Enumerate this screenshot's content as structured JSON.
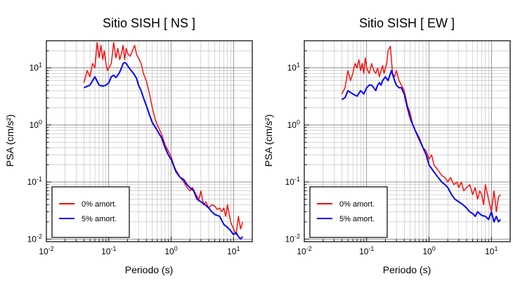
{
  "chart_data": [
    {
      "type": "line",
      "title": "Sitio SISH [ NS ]",
      "xlabel": "Periodo (s)",
      "ylabel": "PSA (cm/s²)",
      "xscale": "log",
      "yscale": "log",
      "xlim": [
        0.01,
        20
      ],
      "ylim": [
        0.009,
        30
      ],
      "xticks": [
        {
          "value": 0.01,
          "base": "10",
          "exp": "-2"
        },
        {
          "value": 0.1,
          "base": "10",
          "exp": "-1"
        },
        {
          "value": 1,
          "base": "10",
          "exp": "0"
        },
        {
          "value": 10,
          "base": "10",
          "exp": "1"
        }
      ],
      "yticks": [
        {
          "value": 0.01,
          "base": "10",
          "exp": "-2"
        },
        {
          "value": 0.1,
          "base": "10",
          "exp": "-1"
        },
        {
          "value": 1,
          "base": "10",
          "exp": "0"
        },
        {
          "value": 10,
          "base": "10",
          "exp": "1"
        }
      ],
      "grid": true,
      "legend_position": "bottom-left",
      "series": [
        {
          "name": "0% amort.",
          "color": "#ff0000",
          "x": [
            0.04,
            0.045,
            0.05,
            0.055,
            0.06,
            0.065,
            0.07,
            0.075,
            0.08,
            0.085,
            0.09,
            0.095,
            0.1,
            0.11,
            0.12,
            0.13,
            0.14,
            0.15,
            0.16,
            0.17,
            0.18,
            0.19,
            0.2,
            0.22,
            0.24,
            0.26,
            0.28,
            0.3,
            0.33,
            0.36,
            0.4,
            0.45,
            0.5,
            0.55,
            0.6,
            0.7,
            0.8,
            0.9,
            1.0,
            1.1,
            1.2,
            1.3,
            1.4,
            1.6,
            1.8,
            2.0,
            2.2,
            2.5,
            2.8,
            3.0,
            3.3,
            3.6,
            4.0,
            4.5,
            5.0,
            5.5,
            6.0,
            6.5,
            7.0,
            7.5,
            8.0,
            9.0,
            10,
            11,
            12,
            13,
            14
          ],
          "values": [
            5.5,
            9,
            7,
            12,
            10,
            28,
            15,
            25,
            14,
            20,
            12,
            9,
            10,
            12,
            28,
            15,
            22,
            14,
            18,
            25,
            14,
            22,
            18,
            16,
            20,
            25,
            17,
            15,
            12,
            8,
            6,
            3.5,
            2.0,
            1.3,
            1.0,
            0.7,
            0.45,
            0.35,
            0.28,
            0.2,
            0.16,
            0.14,
            0.12,
            0.1,
            0.08,
            0.07,
            0.08,
            0.06,
            0.05,
            0.07,
            0.04,
            0.045,
            0.035,
            0.04,
            0.038,
            0.033,
            0.035,
            0.03,
            0.035,
            0.025,
            0.04,
            0.02,
            0.015,
            0.012,
            0.025,
            0.015,
            0.02
          ]
        },
        {
          "name": "5% amort.",
          "color": "#0000ff",
          "x": [
            0.04,
            0.05,
            0.06,
            0.07,
            0.08,
            0.09,
            0.1,
            0.11,
            0.12,
            0.13,
            0.14,
            0.15,
            0.16,
            0.17,
            0.18,
            0.19,
            0.2,
            0.22,
            0.25,
            0.28,
            0.3,
            0.33,
            0.36,
            0.4,
            0.45,
            0.5,
            0.6,
            0.7,
            0.8,
            0.9,
            1.0,
            1.2,
            1.4,
            1.6,
            1.8,
            2.0,
            2.3,
            2.6,
            3.0,
            3.5,
            4.0,
            4.5,
            5.0,
            6.0,
            7.0,
            8.0,
            9.0,
            10,
            11,
            12,
            13,
            14
          ],
          "values": [
            4.5,
            5,
            7,
            5,
            4.8,
            5,
            5.5,
            7,
            7.5,
            6.8,
            7.5,
            8.5,
            10,
            12,
            12.5,
            12,
            11,
            9.5,
            8,
            6.5,
            5,
            4,
            3,
            2.2,
            1.5,
            1.1,
            0.8,
            0.6,
            0.4,
            0.3,
            0.25,
            0.15,
            0.12,
            0.11,
            0.09,
            0.08,
            0.07,
            0.05,
            0.045,
            0.04,
            0.035,
            0.03,
            0.027,
            0.025,
            0.018,
            0.016,
            0.014,
            0.012,
            0.013,
            0.011,
            0.01,
            0.011
          ]
        }
      ]
    },
    {
      "type": "line",
      "title": "Sitio SISH [ EW ]",
      "xlabel": "Periodo (s)",
      "ylabel": "PSA (cm/s²)",
      "xscale": "log",
      "yscale": "log",
      "xlim": [
        0.01,
        20
      ],
      "ylim": [
        0.009,
        30
      ],
      "xticks": [
        {
          "value": 0.01,
          "base": "10",
          "exp": "-2"
        },
        {
          "value": 0.1,
          "base": "10",
          "exp": "-1"
        },
        {
          "value": 1,
          "base": "10",
          "exp": "0"
        },
        {
          "value": 10,
          "base": "10",
          "exp": "1"
        }
      ],
      "yticks": [
        {
          "value": 0.01,
          "base": "10",
          "exp": "-2"
        },
        {
          "value": 0.1,
          "base": "10",
          "exp": "-1"
        },
        {
          "value": 1,
          "base": "10",
          "exp": "0"
        },
        {
          "value": 10,
          "base": "10",
          "exp": "1"
        }
      ],
      "grid": true,
      "legend_position": "bottom-left",
      "series": [
        {
          "name": "0% amort.",
          "color": "#ff0000",
          "x": [
            0.04,
            0.045,
            0.05,
            0.055,
            0.06,
            0.065,
            0.07,
            0.075,
            0.08,
            0.085,
            0.09,
            0.095,
            0.1,
            0.11,
            0.12,
            0.13,
            0.14,
            0.15,
            0.16,
            0.17,
            0.18,
            0.19,
            0.2,
            0.21,
            0.22,
            0.24,
            0.26,
            0.28,
            0.3,
            0.33,
            0.36,
            0.4,
            0.45,
            0.5,
            0.55,
            0.6,
            0.7,
            0.8,
            0.9,
            1.0,
            1.1,
            1.2,
            1.4,
            1.6,
            1.8,
            2.0,
            2.2,
            2.5,
            2.8,
            3.0,
            3.3,
            3.6,
            4.0,
            4.5,
            5.0,
            5.5,
            6.0,
            6.5,
            7.0,
            7.5,
            8.0,
            9.0,
            10,
            11,
            12,
            13,
            14
          ],
          "values": [
            3.5,
            4.5,
            9,
            6,
            8,
            12,
            10,
            14,
            9,
            12,
            8,
            15,
            10,
            8,
            12,
            9,
            8,
            10,
            7,
            9,
            11,
            8,
            10,
            12,
            20,
            24,
            8,
            7,
            9,
            6,
            5,
            4,
            2.2,
            1.6,
            1.0,
            0.8,
            0.6,
            0.4,
            0.35,
            0.25,
            0.3,
            0.2,
            0.16,
            0.13,
            0.12,
            0.1,
            0.12,
            0.09,
            0.1,
            0.08,
            0.1,
            0.07,
            0.08,
            0.09,
            0.06,
            0.08,
            0.05,
            0.07,
            0.06,
            0.04,
            0.09,
            0.05,
            0.03,
            0.07,
            0.03,
            0.055,
            0.06
          ]
        },
        {
          "name": "5% amort.",
          "color": "#0000ff",
          "x": [
            0.04,
            0.045,
            0.05,
            0.06,
            0.07,
            0.08,
            0.09,
            0.1,
            0.11,
            0.12,
            0.13,
            0.14,
            0.15,
            0.16,
            0.17,
            0.18,
            0.2,
            0.22,
            0.25,
            0.28,
            0.3,
            0.33,
            0.36,
            0.4,
            0.45,
            0.5,
            0.6,
            0.7,
            0.8,
            0.9,
            1.0,
            1.2,
            1.4,
            1.6,
            1.8,
            2.0,
            2.3,
            2.6,
            3.0,
            3.5,
            4.0,
            4.5,
            5.0,
            5.5,
            6.0,
            7.0,
            8.0,
            9.0,
            10,
            11,
            12,
            13,
            14
          ],
          "values": [
            2.8,
            3,
            4,
            3.5,
            3.2,
            4,
            3.5,
            4.5,
            5,
            5,
            4.5,
            4,
            5,
            5.5,
            5,
            6,
            7,
            6,
            9,
            6,
            5,
            4.5,
            4.5,
            3.5,
            2,
            1.3,
            0.8,
            0.55,
            0.4,
            0.3,
            0.2,
            0.15,
            0.12,
            0.1,
            0.09,
            0.08,
            0.06,
            0.05,
            0.045,
            0.04,
            0.035,
            0.03,
            0.028,
            0.025,
            0.03,
            0.026,
            0.025,
            0.022,
            0.03,
            0.02,
            0.025,
            0.02,
            0.022
          ]
        }
      ]
    }
  ]
}
